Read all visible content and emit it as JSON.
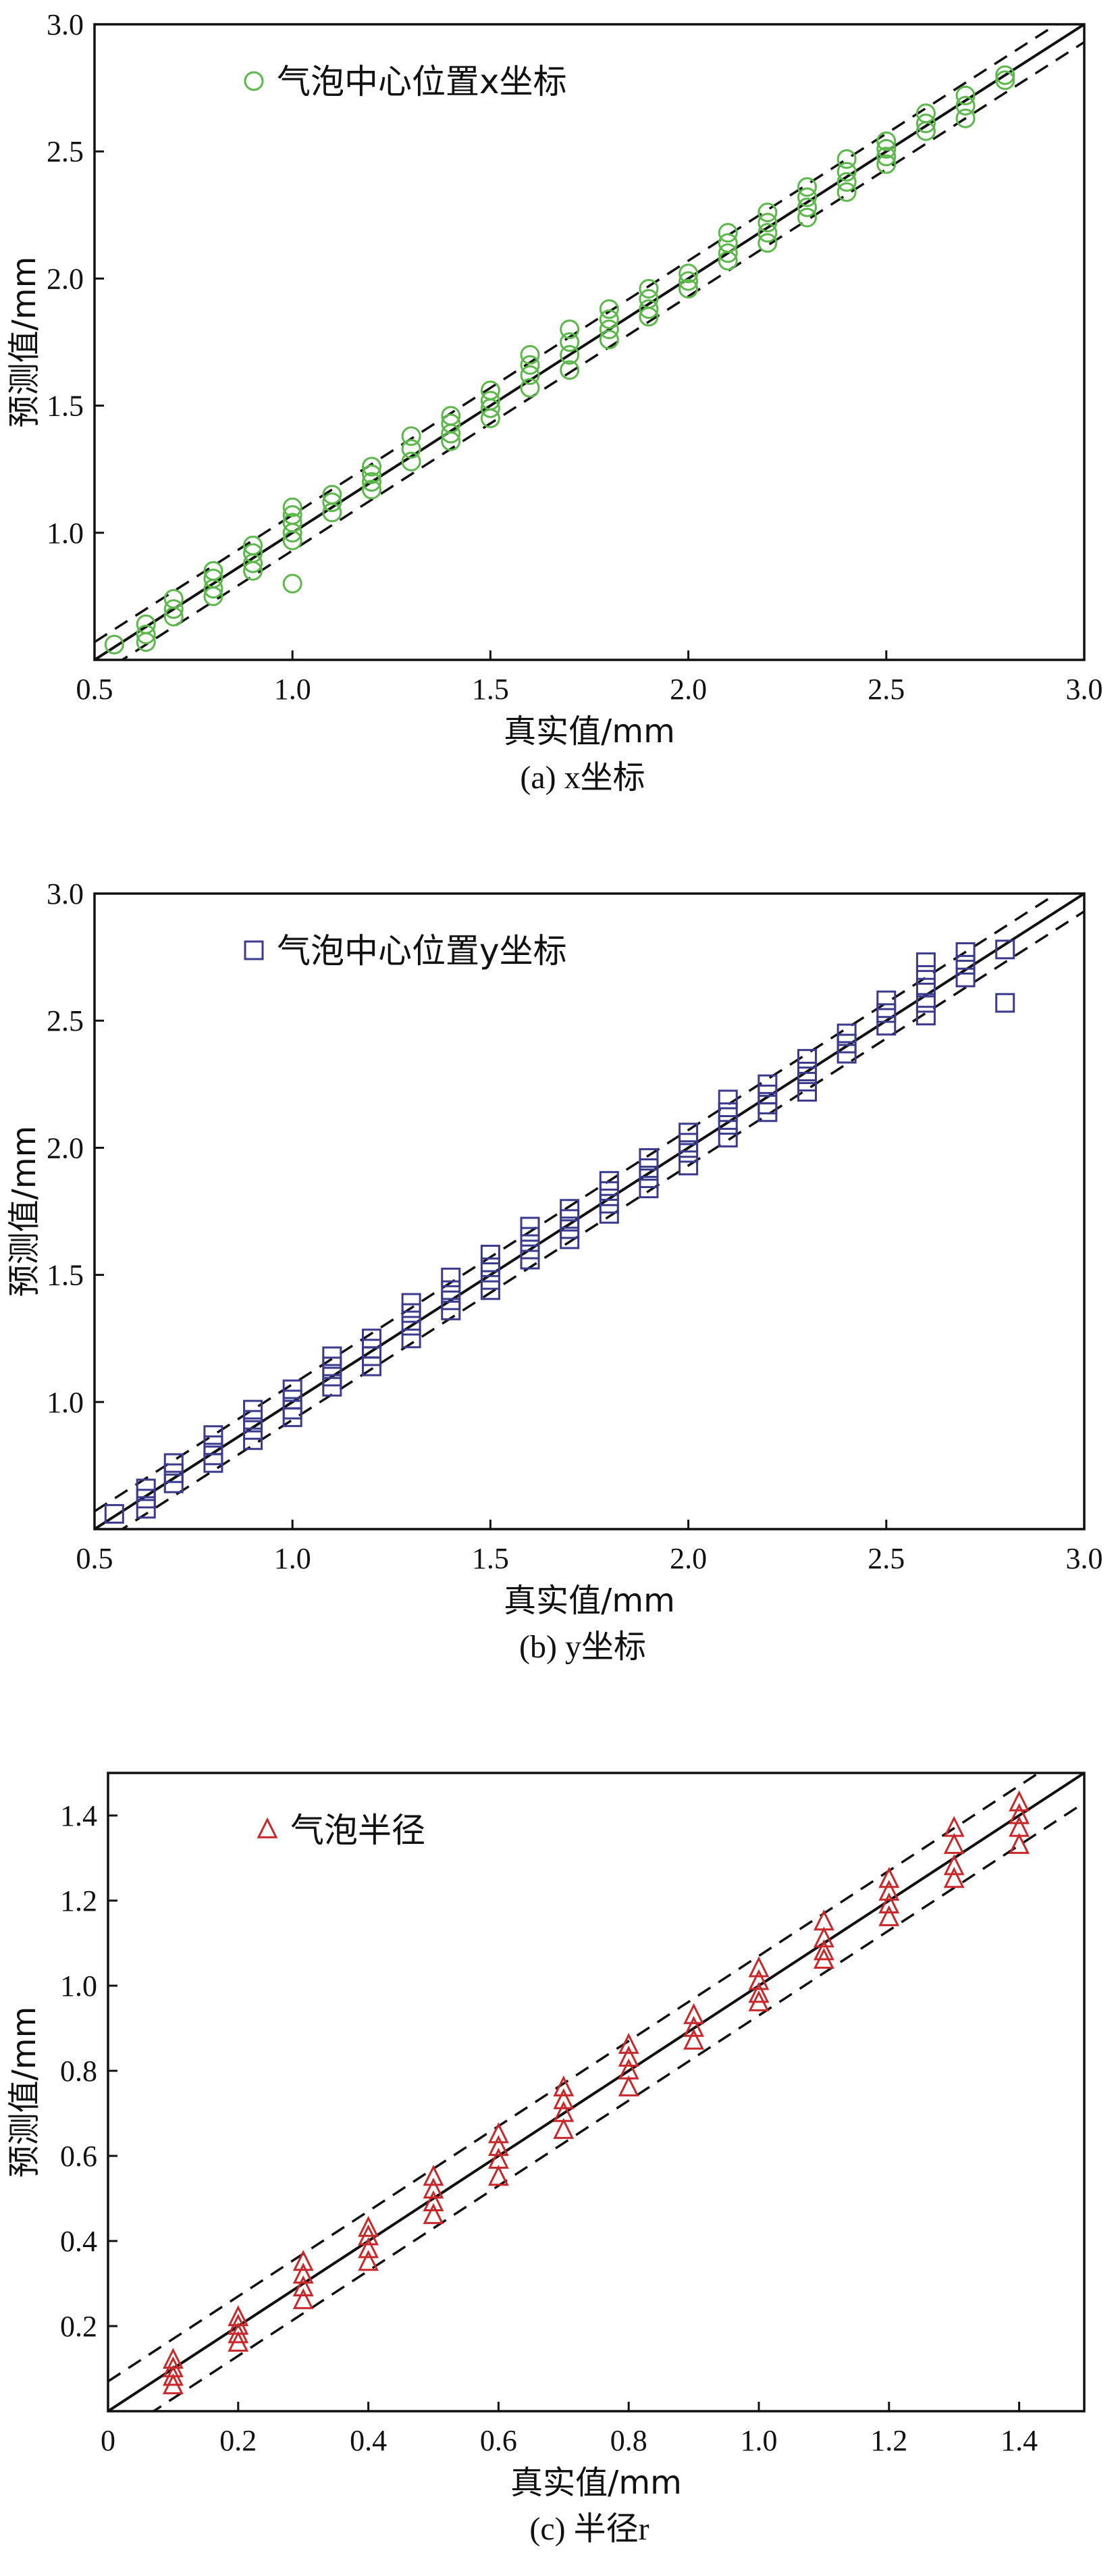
{
  "figure": {
    "panels": [
      "a",
      "b",
      "c"
    ]
  },
  "chart_data": [
    {
      "id": "a",
      "type": "scatter",
      "caption": "(a) x坐标",
      "xlabel": "真实值/mm",
      "ylabel": "预测值/mm",
      "xlim": [
        0.5,
        3.0
      ],
      "ylim": [
        0.5,
        3.0
      ],
      "xticks": [
        "0.5",
        "1.0",
        "1.5",
        "2.0",
        "2.5",
        "3.0"
      ],
      "yticks": [
        "1.0",
        "1.5",
        "2.0",
        "2.5",
        "3.0"
      ],
      "xtick_values": [
        0.5,
        1.0,
        1.5,
        2.0,
        2.5,
        3.0
      ],
      "ytick_values": [
        1.0,
        1.5,
        2.0,
        2.5,
        3.0
      ],
      "legend": {
        "label": "气泡中心位置x坐标",
        "marker": "circle",
        "position": "top-left"
      },
      "reference_line": "y = x",
      "band": [
        -0.07,
        0.07
      ],
      "grid": false,
      "color": "#5cb84a",
      "series": [
        {
          "label": "气泡中心位置x坐标",
          "points": [
            [
              0.55,
              0.56
            ],
            [
              0.63,
              0.64
            ],
            [
              0.63,
              0.6
            ],
            [
              0.63,
              0.57
            ],
            [
              0.7,
              0.74
            ],
            [
              0.7,
              0.7
            ],
            [
              0.7,
              0.67
            ],
            [
              0.8,
              0.85
            ],
            [
              0.8,
              0.82
            ],
            [
              0.8,
              0.78
            ],
            [
              0.8,
              0.75
            ],
            [
              0.9,
              0.95
            ],
            [
              0.9,
              0.92
            ],
            [
              0.9,
              0.88
            ],
            [
              0.9,
              0.85
            ],
            [
              1.0,
              1.1
            ],
            [
              1.0,
              1.07
            ],
            [
              1.0,
              1.04
            ],
            [
              1.0,
              1.0
            ],
            [
              1.0,
              0.97
            ],
            [
              1.0,
              0.8
            ],
            [
              1.1,
              1.15
            ],
            [
              1.1,
              1.12
            ],
            [
              1.1,
              1.08
            ],
            [
              1.2,
              1.26
            ],
            [
              1.2,
              1.23
            ],
            [
              1.2,
              1.2
            ],
            [
              1.2,
              1.17
            ],
            [
              1.3,
              1.38
            ],
            [
              1.3,
              1.33
            ],
            [
              1.3,
              1.28
            ],
            [
              1.4,
              1.46
            ],
            [
              1.4,
              1.43
            ],
            [
              1.4,
              1.39
            ],
            [
              1.4,
              1.36
            ],
            [
              1.5,
              1.56
            ],
            [
              1.5,
              1.52
            ],
            [
              1.5,
              1.49
            ],
            [
              1.5,
              1.45
            ],
            [
              1.6,
              1.7
            ],
            [
              1.6,
              1.66
            ],
            [
              1.6,
              1.62
            ],
            [
              1.6,
              1.57
            ],
            [
              1.7,
              1.8
            ],
            [
              1.7,
              1.75
            ],
            [
              1.7,
              1.7
            ],
            [
              1.7,
              1.64
            ],
            [
              1.8,
              1.88
            ],
            [
              1.8,
              1.84
            ],
            [
              1.8,
              1.8
            ],
            [
              1.8,
              1.76
            ],
            [
              1.9,
              1.96
            ],
            [
              1.9,
              1.92
            ],
            [
              1.9,
              1.88
            ],
            [
              1.9,
              1.85
            ],
            [
              2.0,
              2.02
            ],
            [
              2.0,
              1.99
            ],
            [
              2.0,
              1.96
            ],
            [
              2.1,
              2.18
            ],
            [
              2.1,
              2.14
            ],
            [
              2.1,
              2.1
            ],
            [
              2.1,
              2.07
            ],
            [
              2.2,
              2.26
            ],
            [
              2.2,
              2.22
            ],
            [
              2.2,
              2.18
            ],
            [
              2.2,
              2.14
            ],
            [
              2.3,
              2.36
            ],
            [
              2.3,
              2.32
            ],
            [
              2.3,
              2.28
            ],
            [
              2.3,
              2.24
            ],
            [
              2.4,
              2.47
            ],
            [
              2.4,
              2.42
            ],
            [
              2.4,
              2.38
            ],
            [
              2.4,
              2.34
            ],
            [
              2.5,
              2.54
            ],
            [
              2.5,
              2.51
            ],
            [
              2.5,
              2.48
            ],
            [
              2.5,
              2.45
            ],
            [
              2.6,
              2.65
            ],
            [
              2.6,
              2.61
            ],
            [
              2.6,
              2.58
            ],
            [
              2.7,
              2.72
            ],
            [
              2.7,
              2.68
            ],
            [
              2.7,
              2.63
            ],
            [
              2.8,
              2.8
            ],
            [
              2.8,
              2.78
            ]
          ]
        }
      ]
    },
    {
      "id": "b",
      "type": "scatter",
      "caption": "(b) y坐标",
      "xlabel": "真实值/mm",
      "ylabel": "预测值/mm",
      "xlim": [
        0.5,
        3.0
      ],
      "ylim": [
        0.5,
        3.0
      ],
      "xticks": [
        "0.5",
        "1.0",
        "1.5",
        "2.0",
        "2.5",
        "3.0"
      ],
      "yticks": [
        "1.0",
        "1.5",
        "2.0",
        "2.5",
        "3.0"
      ],
      "xtick_values": [
        0.5,
        1.0,
        1.5,
        2.0,
        2.5,
        3.0
      ],
      "ytick_values": [
        1.0,
        1.5,
        2.0,
        2.5,
        3.0
      ],
      "legend": {
        "label": "气泡中心位置y坐标",
        "marker": "square",
        "position": "top-left"
      },
      "reference_line": "y = x",
      "band": [
        -0.07,
        0.07
      ],
      "grid": false,
      "color": "#3b3a8c",
      "series": [
        {
          "label": "气泡中心位置y坐标",
          "points": [
            [
              0.55,
              0.56
            ],
            [
              0.63,
              0.66
            ],
            [
              0.63,
              0.62
            ],
            [
              0.63,
              0.58
            ],
            [
              0.7,
              0.76
            ],
            [
              0.7,
              0.72
            ],
            [
              0.7,
              0.68
            ],
            [
              0.8,
              0.87
            ],
            [
              0.8,
              0.83
            ],
            [
              0.8,
              0.79
            ],
            [
              0.8,
              0.76
            ],
            [
              0.9,
              0.97
            ],
            [
              0.9,
              0.93
            ],
            [
              0.9,
              0.89
            ],
            [
              0.9,
              0.85
            ],
            [
              1.0,
              1.05
            ],
            [
              1.0,
              1.01
            ],
            [
              1.0,
              0.97
            ],
            [
              1.0,
              0.94
            ],
            [
              1.1,
              1.18
            ],
            [
              1.1,
              1.14
            ],
            [
              1.1,
              1.1
            ],
            [
              1.1,
              1.06
            ],
            [
              1.2,
              1.25
            ],
            [
              1.2,
              1.21
            ],
            [
              1.2,
              1.18
            ],
            [
              1.2,
              1.14
            ],
            [
              1.3,
              1.39
            ],
            [
              1.3,
              1.35
            ],
            [
              1.3,
              1.3
            ],
            [
              1.3,
              1.25
            ],
            [
              1.4,
              1.49
            ],
            [
              1.4,
              1.44
            ],
            [
              1.4,
              1.4
            ],
            [
              1.4,
              1.36
            ],
            [
              1.5,
              1.58
            ],
            [
              1.5,
              1.53
            ],
            [
              1.5,
              1.48
            ],
            [
              1.5,
              1.44
            ],
            [
              1.6,
              1.69
            ],
            [
              1.6,
              1.65
            ],
            [
              1.6,
              1.6
            ],
            [
              1.6,
              1.56
            ],
            [
              1.7,
              1.76
            ],
            [
              1.7,
              1.72
            ],
            [
              1.7,
              1.68
            ],
            [
              1.7,
              1.64
            ],
            [
              1.8,
              1.87
            ],
            [
              1.8,
              1.83
            ],
            [
              1.8,
              1.78
            ],
            [
              1.8,
              1.74
            ],
            [
              1.9,
              1.96
            ],
            [
              1.9,
              1.92
            ],
            [
              1.9,
              1.88
            ],
            [
              1.9,
              1.84
            ],
            [
              2.0,
              2.06
            ],
            [
              2.0,
              2.02
            ],
            [
              2.0,
              1.98
            ],
            [
              2.0,
              1.93
            ],
            [
              2.1,
              2.19
            ],
            [
              2.1,
              2.14
            ],
            [
              2.1,
              2.09
            ],
            [
              2.1,
              2.04
            ],
            [
              2.2,
              2.25
            ],
            [
              2.2,
              2.21
            ],
            [
              2.2,
              2.17
            ],
            [
              2.2,
              2.14
            ],
            [
              2.3,
              2.35
            ],
            [
              2.3,
              2.3
            ],
            [
              2.3,
              2.26
            ],
            [
              2.3,
              2.22
            ],
            [
              2.4,
              2.45
            ],
            [
              2.4,
              2.41
            ],
            [
              2.4,
              2.37
            ],
            [
              2.5,
              2.58
            ],
            [
              2.5,
              2.53
            ],
            [
              2.5,
              2.48
            ],
            [
              2.6,
              2.73
            ],
            [
              2.6,
              2.68
            ],
            [
              2.6,
              2.63
            ],
            [
              2.6,
              2.57
            ],
            [
              2.6,
              2.52
            ],
            [
              2.7,
              2.77
            ],
            [
              2.7,
              2.72
            ],
            [
              2.7,
              2.67
            ],
            [
              2.8,
              2.78
            ],
            [
              2.8,
              2.57
            ]
          ]
        }
      ]
    },
    {
      "id": "c",
      "type": "scatter",
      "caption": "(c) 半径r",
      "xlabel": "真实值/mm",
      "ylabel": "预测值/mm",
      "xlim": [
        0,
        1.5
      ],
      "ylim": [
        0,
        1.5
      ],
      "xticks": [
        "0",
        "0.2",
        "0.4",
        "0.6",
        "0.8",
        "1.0",
        "1.2",
        "1.4"
      ],
      "yticks": [
        "0.2",
        "0.4",
        "0.6",
        "0.8",
        "1.0",
        "1.2",
        "1.4"
      ],
      "xtick_values": [
        0,
        0.2,
        0.4,
        0.6,
        0.8,
        1.0,
        1.2,
        1.4
      ],
      "ytick_values": [
        0.2,
        0.4,
        0.6,
        0.8,
        1.0,
        1.2,
        1.4
      ],
      "legend": {
        "label": "气泡半径",
        "marker": "triangle",
        "position": "top-left"
      },
      "reference_line": "y = x",
      "band": [
        -0.07,
        0.07
      ],
      "grid": false,
      "color": "#c8282a",
      "series": [
        {
          "label": "气泡半径",
          "points": [
            [
              0.1,
              0.12
            ],
            [
              0.1,
              0.1
            ],
            [
              0.1,
              0.08
            ],
            [
              0.1,
              0.06
            ],
            [
              0.2,
              0.22
            ],
            [
              0.2,
              0.2
            ],
            [
              0.2,
              0.18
            ],
            [
              0.2,
              0.16
            ],
            [
              0.3,
              0.35
            ],
            [
              0.3,
              0.32
            ],
            [
              0.3,
              0.29
            ],
            [
              0.3,
              0.26
            ],
            [
              0.4,
              0.43
            ],
            [
              0.4,
              0.41
            ],
            [
              0.4,
              0.38
            ],
            [
              0.4,
              0.35
            ],
            [
              0.5,
              0.55
            ],
            [
              0.5,
              0.52
            ],
            [
              0.5,
              0.49
            ],
            [
              0.5,
              0.46
            ],
            [
              0.6,
              0.65
            ],
            [
              0.6,
              0.62
            ],
            [
              0.6,
              0.59
            ],
            [
              0.6,
              0.55
            ],
            [
              0.7,
              0.76
            ],
            [
              0.7,
              0.73
            ],
            [
              0.7,
              0.7
            ],
            [
              0.7,
              0.66
            ],
            [
              0.8,
              0.86
            ],
            [
              0.8,
              0.83
            ],
            [
              0.8,
              0.8
            ],
            [
              0.8,
              0.76
            ],
            [
              0.9,
              0.93
            ],
            [
              0.9,
              0.9
            ],
            [
              0.9,
              0.87
            ],
            [
              1.0,
              1.04
            ],
            [
              1.0,
              1.01
            ],
            [
              1.0,
              0.98
            ],
            [
              1.0,
              0.96
            ],
            [
              1.1,
              1.15
            ],
            [
              1.1,
              1.11
            ],
            [
              1.1,
              1.08
            ],
            [
              1.1,
              1.06
            ],
            [
              1.2,
              1.25
            ],
            [
              1.2,
              1.22
            ],
            [
              1.2,
              1.19
            ],
            [
              1.2,
              1.16
            ],
            [
              1.3,
              1.37
            ],
            [
              1.3,
              1.33
            ],
            [
              1.3,
              1.28
            ],
            [
              1.3,
              1.25
            ],
            [
              1.4,
              1.43
            ],
            [
              1.4,
              1.4
            ],
            [
              1.4,
              1.37
            ],
            [
              1.4,
              1.33
            ]
          ]
        }
      ]
    }
  ]
}
